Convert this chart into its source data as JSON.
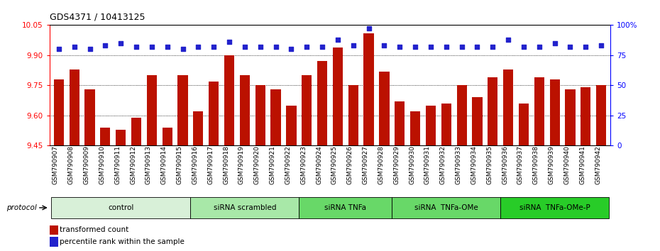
{
  "title": "GDS4371 / 10413125",
  "samples": [
    "GSM790907",
    "GSM790908",
    "GSM790909",
    "GSM790910",
    "GSM790911",
    "GSM790912",
    "GSM790913",
    "GSM790914",
    "GSM790915",
    "GSM790916",
    "GSM790917",
    "GSM790918",
    "GSM790919",
    "GSM790920",
    "GSM790921",
    "GSM790922",
    "GSM790923",
    "GSM790924",
    "GSM790925",
    "GSM790926",
    "GSM790927",
    "GSM790928",
    "GSM790929",
    "GSM790930",
    "GSM790931",
    "GSM790932",
    "GSM790933",
    "GSM790934",
    "GSM790935",
    "GSM790936",
    "GSM790937",
    "GSM790938",
    "GSM790939",
    "GSM790940",
    "GSM790941",
    "GSM790942"
  ],
  "bar_values": [
    9.78,
    9.83,
    9.73,
    9.54,
    9.53,
    9.59,
    9.8,
    9.54,
    9.8,
    9.62,
    9.77,
    9.9,
    9.8,
    9.75,
    9.73,
    9.65,
    9.8,
    9.87,
    9.94,
    9.75,
    10.01,
    9.82,
    9.67,
    9.62,
    9.65,
    9.66,
    9.75,
    9.69,
    9.79,
    9.83,
    9.66,
    9.79,
    9.78,
    9.73,
    9.74,
    9.75
  ],
  "blue_values": [
    80,
    82,
    80,
    83,
    85,
    82,
    82,
    82,
    80,
    82,
    82,
    86,
    82,
    82,
    82,
    80,
    82,
    82,
    88,
    83,
    97,
    83,
    82,
    82,
    82,
    82,
    82,
    82,
    82,
    88,
    82,
    82,
    85,
    82,
    82,
    83
  ],
  "groups": [
    {
      "label": "control",
      "start": 0,
      "end": 9,
      "color": "#d8f0d8"
    },
    {
      "label": "siRNA scrambled",
      "start": 9,
      "end": 16,
      "color": "#a8e8a8"
    },
    {
      "label": "siRNA TNFa",
      "start": 16,
      "end": 22,
      "color": "#68d868"
    },
    {
      "label": "siRNA  TNFa-OMe",
      "start": 22,
      "end": 29,
      "color": "#68d868"
    },
    {
      "label": "siRNA  TNFa-OMe-P",
      "start": 29,
      "end": 36,
      "color": "#28cc28"
    }
  ],
  "ylim_left": [
    9.45,
    10.05
  ],
  "ylim_right": [
    0,
    100
  ],
  "bar_color": "#bb1100",
  "blue_color": "#2222cc",
  "yticks_left": [
    9.45,
    9.6,
    9.75,
    9.9,
    10.05
  ],
  "yticks_right": [
    0,
    25,
    50,
    75,
    100
  ],
  "ytick_right_labels": [
    "0",
    "25",
    "50",
    "75",
    "100%"
  ],
  "legend_items": [
    {
      "label": "transformed count",
      "color": "#bb1100"
    },
    {
      "label": "percentile rank within the sample",
      "color": "#2222cc"
    }
  ]
}
